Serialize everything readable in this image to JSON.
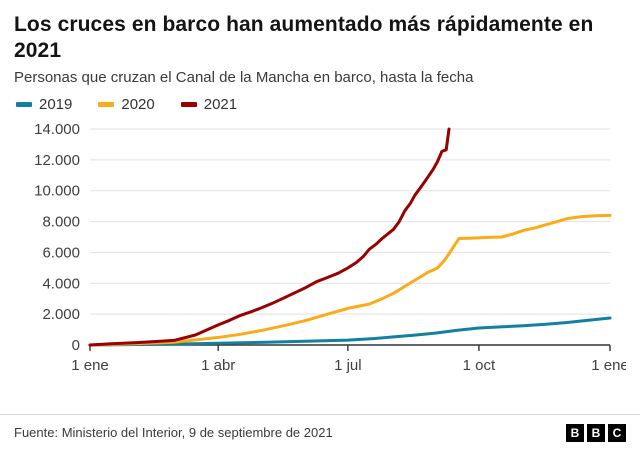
{
  "header": {
    "title": "Los cruces en barco han aumentado más rápidamente en 2021",
    "subtitle": "Personas que cruzan el Canal de la Mancha en barco, hasta la fecha"
  },
  "chart_data": {
    "type": "line",
    "title": "Los cruces en barco han aumentado más rápidamente en 2021",
    "subtitle": "Personas que cruzan el Canal de la Mancha en barco, hasta la fecha",
    "xlabel": "",
    "ylabel": "",
    "xlim": [
      0,
      365
    ],
    "ylim": [
      0,
      14000
    ],
    "grid": true,
    "legend_position": "top",
    "x_ticks": [
      {
        "label": "1 ene",
        "day": 0
      },
      {
        "label": "1 abr",
        "day": 90
      },
      {
        "label": "1 jul",
        "day": 181
      },
      {
        "label": "1 oct",
        "day": 273
      },
      {
        "label": "1 ene",
        "day": 365
      }
    ],
    "y_ticks": [
      {
        "value": 0,
        "label": "0"
      },
      {
        "value": 2000,
        "label": "2.000"
      },
      {
        "value": 4000,
        "label": "4.000"
      },
      {
        "value": 6000,
        "label": "6.000"
      },
      {
        "value": 8000,
        "label": "8.000"
      },
      {
        "value": 10000,
        "label": "10.000"
      },
      {
        "value": 12000,
        "label": "12.000"
      },
      {
        "value": 14000,
        "label": "14.000"
      }
    ],
    "series": [
      {
        "name": "2019",
        "color": "#1380A1",
        "points": [
          [
            0,
            0
          ],
          [
            31,
            30
          ],
          [
            59,
            60
          ],
          [
            90,
            110
          ],
          [
            120,
            170
          ],
          [
            151,
            240
          ],
          [
            181,
            320
          ],
          [
            200,
            420
          ],
          [
            212,
            520
          ],
          [
            228,
            640
          ],
          [
            243,
            780
          ],
          [
            258,
            950
          ],
          [
            273,
            1100
          ],
          [
            290,
            1180
          ],
          [
            304,
            1250
          ],
          [
            320,
            1350
          ],
          [
            334,
            1450
          ],
          [
            350,
            1600
          ],
          [
            365,
            1750
          ]
        ]
      },
      {
        "name": "2020",
        "color": "#FAAB18",
        "points": [
          [
            0,
            0
          ],
          [
            31,
            80
          ],
          [
            59,
            180
          ],
          [
            91,
            500
          ],
          [
            106,
            700
          ],
          [
            121,
            950
          ],
          [
            136,
            1250
          ],
          [
            152,
            1600
          ],
          [
            167,
            2000
          ],
          [
            182,
            2400
          ],
          [
            196,
            2650
          ],
          [
            205,
            3000
          ],
          [
            213,
            3350
          ],
          [
            221,
            3800
          ],
          [
            229,
            4250
          ],
          [
            237,
            4700
          ],
          [
            244,
            5000
          ],
          [
            249,
            5500
          ],
          [
            254,
            6200
          ],
          [
            259,
            6900
          ],
          [
            266,
            6920
          ],
          [
            274,
            6950
          ],
          [
            282,
            6980
          ],
          [
            289,
            7000
          ],
          [
            297,
            7200
          ],
          [
            305,
            7450
          ],
          [
            313,
            7600
          ],
          [
            320,
            7800
          ],
          [
            328,
            8000
          ],
          [
            335,
            8200
          ],
          [
            345,
            8320
          ],
          [
            355,
            8380
          ],
          [
            365,
            8400
          ]
        ]
      },
      {
        "name": "2021",
        "color": "#990000",
        "points": [
          [
            0,
            0
          ],
          [
            15,
            80
          ],
          [
            31,
            150
          ],
          [
            45,
            220
          ],
          [
            59,
            300
          ],
          [
            74,
            650
          ],
          [
            90,
            1300
          ],
          [
            98,
            1600
          ],
          [
            105,
            1900
          ],
          [
            113,
            2150
          ],
          [
            120,
            2400
          ],
          [
            128,
            2700
          ],
          [
            135,
            3000
          ],
          [
            143,
            3350
          ],
          [
            151,
            3700
          ],
          [
            159,
            4100
          ],
          [
            166,
            4350
          ],
          [
            174,
            4650
          ],
          [
            181,
            5000
          ],
          [
            187,
            5350
          ],
          [
            192,
            5750
          ],
          [
            196,
            6200
          ],
          [
            201,
            6550
          ],
          [
            205,
            6900
          ],
          [
            209,
            7200
          ],
          [
            213,
            7500
          ],
          [
            217,
            8000
          ],
          [
            221,
            8700
          ],
          [
            225,
            9200
          ],
          [
            228,
            9700
          ],
          [
            232,
            10200
          ],
          [
            235,
            10600
          ],
          [
            238,
            11000
          ],
          [
            241,
            11400
          ],
          [
            244,
            11900
          ],
          [
            247,
            12550
          ],
          [
            250,
            12650
          ],
          [
            252,
            14000
          ]
        ]
      }
    ]
  },
  "footer": {
    "source": "Fuente: Ministerio del Interior, 9 de septiembre de 2021",
    "logo_letters": [
      "B",
      "B",
      "C"
    ]
  }
}
